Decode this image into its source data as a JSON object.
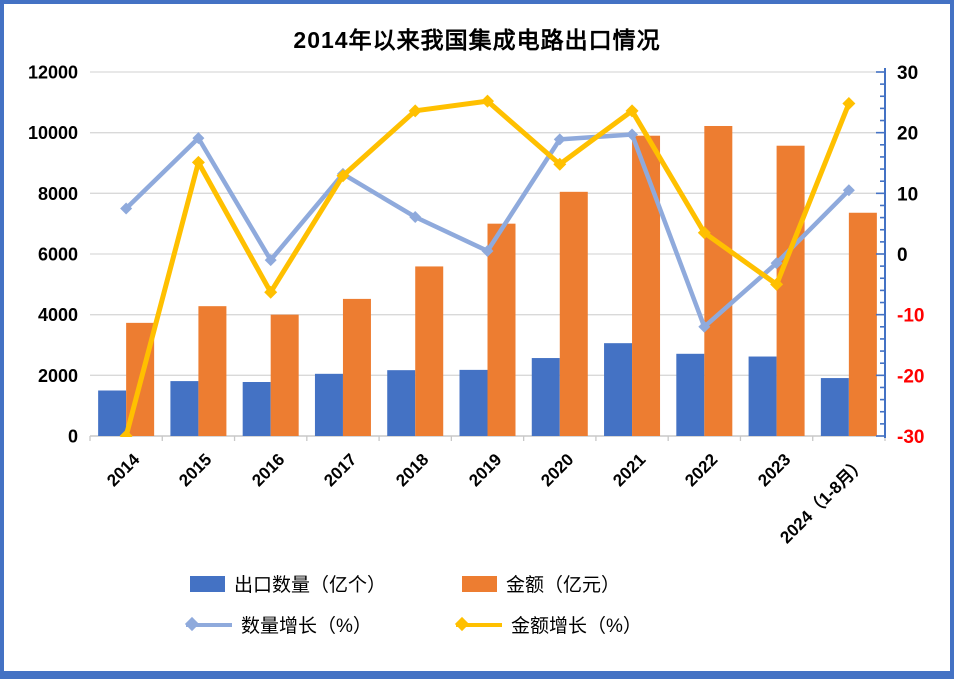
{
  "title": "2014年以来我国集成电路出口情况",
  "chart_data": {
    "type": "combo-bar-line",
    "categories": [
      "2014",
      "2015",
      "2016",
      "2017",
      "2018",
      "2019",
      "2020",
      "2021",
      "2022",
      "2023",
      "2024（1-8月）"
    ],
    "series": [
      {
        "name": "出口数量（亿个）",
        "kind": "bar",
        "axis": "left",
        "color": "#4472C4",
        "values": [
          1500,
          1810,
          1780,
          2050,
          2170,
          2180,
          2570,
          3060,
          2710,
          2620,
          1910
        ]
      },
      {
        "name": "金额（亿元）",
        "kind": "bar",
        "axis": "left",
        "color": "#ED7D31",
        "values": [
          3730,
          4280,
          4000,
          4520,
          5590,
          7000,
          8050,
          9900,
          10220,
          9570,
          7360
        ]
      },
      {
        "name": "数量增长（%）",
        "kind": "line",
        "axis": "right",
        "color": "#8FAADC",
        "values": [
          7.5,
          19.1,
          -1.0,
          13.2,
          6.1,
          0.5,
          18.9,
          19.7,
          -12.0,
          -1.5,
          10.5
        ]
      },
      {
        "name": "金额增长（%）",
        "kind": "line",
        "axis": "right",
        "color": "#FFC000",
        "values": [
          -30,
          15.1,
          -6.3,
          12.9,
          23.6,
          25.2,
          14.8,
          23.6,
          3.5,
          -5.0,
          24.8
        ]
      }
    ],
    "left_axis": {
      "min": 0,
      "max": 12000,
      "step": 2000,
      "ticks": [
        "12000",
        "10000",
        "8000",
        "6000",
        "4000",
        "2000",
        "0"
      ]
    },
    "right_axis": {
      "min": -30,
      "max": 30,
      "step": 10,
      "minor_step": 2,
      "ticks": [
        "30",
        "20",
        "10",
        "0",
        "-10",
        "-20",
        "-30"
      ],
      "axis_color": "#4472C4",
      "negative_tick_color": "#FF0000"
    },
    "grid": true,
    "legend_position": "bottom"
  },
  "colors": {
    "border": "#4472C4",
    "gridline": "#D9D9D9",
    "axis_gray": "#C8C8C8",
    "text": "#000000",
    "negative": "#FF0000",
    "background": "#FFFFFF"
  }
}
